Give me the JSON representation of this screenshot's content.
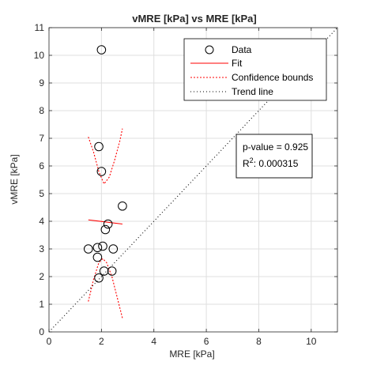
{
  "chart_data": {
    "type": "scatter",
    "title": "vMRE [kPa] vs MRE [kPa]",
    "xlabel": "MRE [kPa]",
    "ylabel": "vMRE [kPa]",
    "xlim": [
      0,
      11
    ],
    "ylim": [
      0,
      11
    ],
    "xticks": [
      0,
      2,
      4,
      6,
      8,
      10
    ],
    "yticks": [
      0,
      1,
      2,
      3,
      4,
      5,
      6,
      7,
      8,
      9,
      10,
      11
    ],
    "grid": true,
    "legend_position": "top-right",
    "legend": [
      {
        "label": "Data",
        "style": "marker-circle",
        "color": "#000000"
      },
      {
        "label": "Fit",
        "style": "solid",
        "color": "#ff0000"
      },
      {
        "label": "Confidence bounds",
        "style": "dotted",
        "color": "#ff0000"
      },
      {
        "label": "Trend line",
        "style": "dotted",
        "color": "#000000"
      }
    ],
    "series": [
      {
        "name": "Data",
        "kind": "points",
        "color": "#000000",
        "points": [
          [
            2.0,
            10.2
          ],
          [
            1.9,
            6.7
          ],
          [
            2.0,
            5.8
          ],
          [
            2.8,
            4.55
          ],
          [
            2.25,
            3.9
          ],
          [
            2.15,
            3.7
          ],
          [
            1.5,
            3.0
          ],
          [
            1.85,
            3.05
          ],
          [
            2.05,
            3.1
          ],
          [
            2.45,
            3.0
          ],
          [
            1.85,
            2.7
          ],
          [
            2.1,
            2.2
          ],
          [
            2.4,
            2.2
          ],
          [
            1.9,
            1.95
          ]
        ]
      },
      {
        "name": "Fit",
        "kind": "line",
        "color": "#ff0000",
        "dash": "",
        "points": [
          [
            1.5,
            4.05
          ],
          [
            2.8,
            3.9
          ]
        ]
      },
      {
        "name": "Confidence bounds",
        "kind": "line",
        "color": "#ff0000",
        "dash": "2,2",
        "points": [
          [
            1.5,
            7.05
          ],
          [
            1.7,
            6.5
          ],
          [
            1.9,
            5.8
          ],
          [
            2.1,
            5.35
          ],
          [
            2.3,
            5.6
          ],
          [
            2.5,
            6.2
          ],
          [
            2.7,
            6.9
          ],
          [
            2.8,
            7.35
          ]
        ]
      },
      {
        "name": "Confidence bounds",
        "kind": "line",
        "color": "#ff0000",
        "dash": "2,2",
        "points": [
          [
            1.5,
            1.1
          ],
          [
            1.7,
            1.9
          ],
          [
            1.9,
            2.5
          ],
          [
            2.05,
            2.65
          ],
          [
            2.2,
            2.5
          ],
          [
            2.4,
            2.0
          ],
          [
            2.6,
            1.25
          ],
          [
            2.8,
            0.5
          ]
        ]
      },
      {
        "name": "Trend line",
        "kind": "line",
        "color": "#000000",
        "dash": "1,3",
        "points": [
          [
            0,
            0
          ],
          [
            11,
            11
          ]
        ]
      }
    ],
    "annotation": {
      "line1": "p-value = 0.925",
      "line2_prefix": "R",
      "line2_sup": "2",
      "line2_suffix": ": 0.000315"
    }
  }
}
